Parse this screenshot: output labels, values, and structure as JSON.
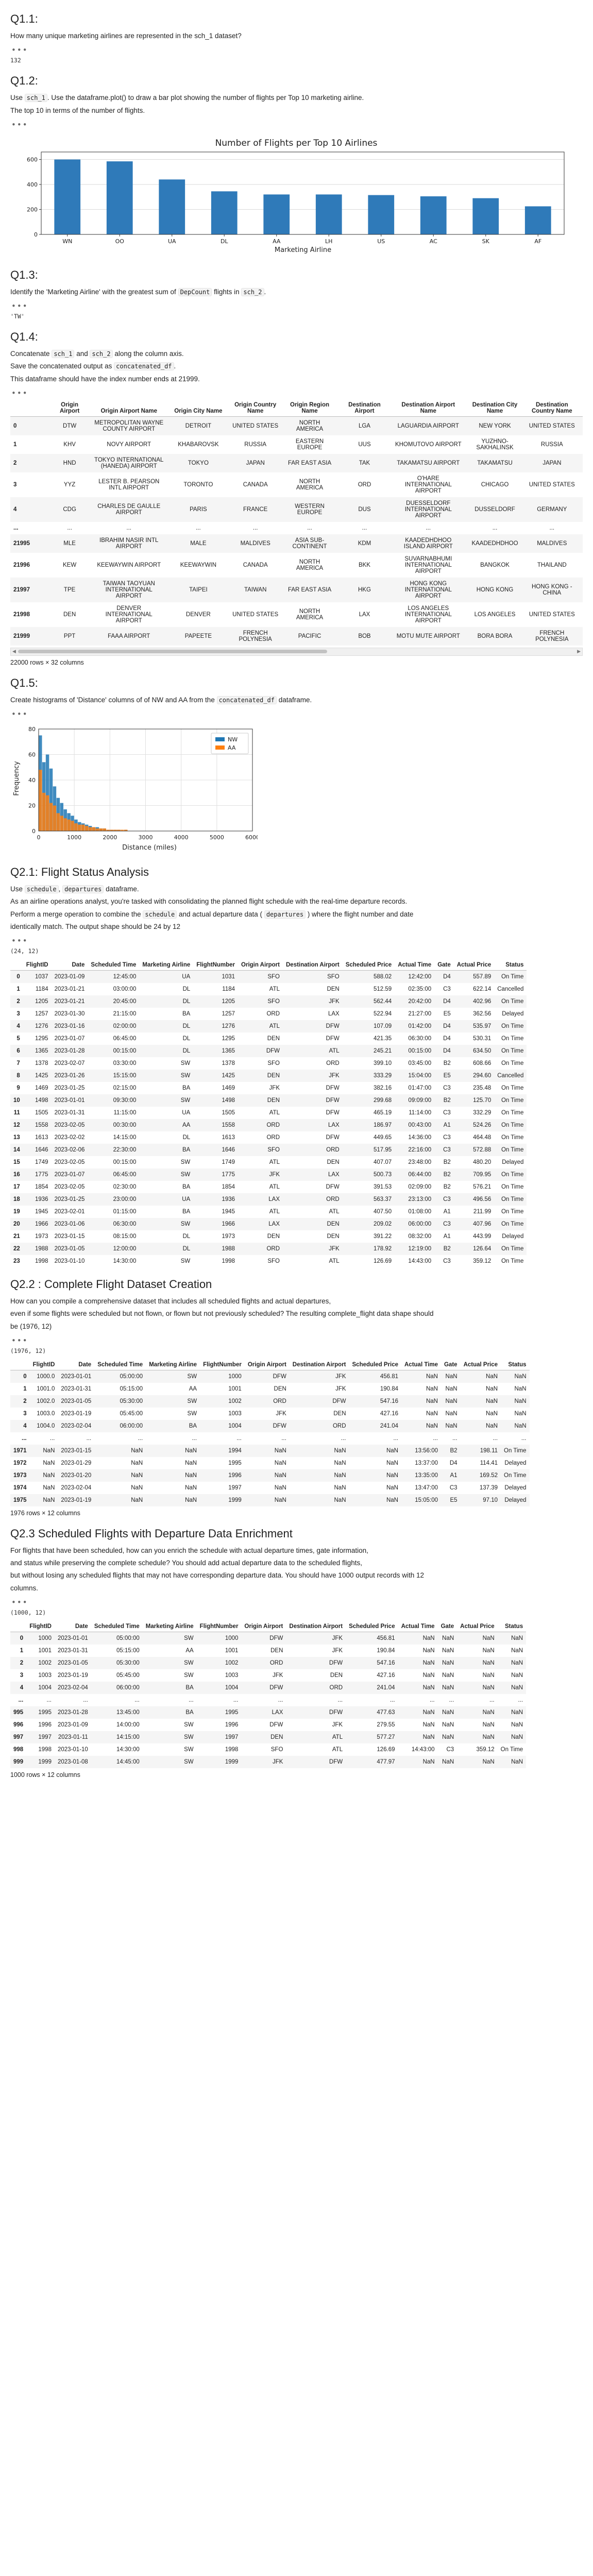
{
  "q11": {
    "title": "Q1.1:",
    "text": "How many unique marketing airlines are represented in the sch_1 dataset?",
    "output": "132"
  },
  "q12": {
    "title": "Q1.2:",
    "text1_a": "Use ",
    "text1_code": "sch_1",
    "text1_b": ". Use the dataframe.plot() to draw a bar plot showing the number of flights per Top 10 marketing airline.",
    "text2": "The top 10 in terms of the number of flights.",
    "chart_data": {
      "type": "bar",
      "title": "Number of Flights per Top 10 Airlines",
      "xlabel": "Marketing Airline",
      "ylabel": "",
      "categories": [
        "WN",
        "OO",
        "UA",
        "DL",
        "AA",
        "LH",
        "US",
        "AC",
        "SK",
        "AF"
      ],
      "values": [
        600,
        585,
        440,
        345,
        320,
        320,
        315,
        305,
        290,
        225
      ],
      "yticks": [
        0,
        200,
        400,
        600
      ],
      "ylim": [
        0,
        660
      ],
      "grid": true,
      "color": "#2f7ab9"
    }
  },
  "q13": {
    "title": "Q1.3:",
    "text_a": "Identify the 'Marketing Airline' with the greatest sum of ",
    "text_code1": "DepCount",
    "text_b": " flights in ",
    "text_code2": "sch_2",
    "text_c": ".",
    "output": "'TW'"
  },
  "q14": {
    "title": "Q1.4:",
    "line1_a": "Concatenate ",
    "line1_code1": "sch_1",
    "line1_b": " and ",
    "line1_code2": "sch_2",
    "line1_c": " along the column axis.",
    "line2_a": "Save the concatenated output as ",
    "line2_code": "concatenated_df",
    "line2_b": ".",
    "line3": "This dataframe should have the index number ends at 21999.",
    "columns": [
      "",
      "Origin Airport",
      "Origin Airport Name",
      "Origin City Name",
      "Origin Country Name",
      "Origin Region Name",
      "Destination Airport",
      "Destination Airport Name",
      "Destination City Name",
      "Destination Country Name",
      "De"
    ],
    "rows": [
      [
        "0",
        "DTW",
        "METROPOLITAN WAYNE COUNTY AIRPORT",
        "DETROIT",
        "UNITED STATES",
        "NORTH AMERICA",
        "LGA",
        "LAGUARDIA AIRPORT",
        "NEW YORK",
        "UNITED STATES",
        ""
      ],
      [
        "1",
        "KHV",
        "NOVY AIRPORT",
        "KHABAROVSK",
        "RUSSIA",
        "EASTERN EUROPE",
        "UUS",
        "KHOMUTOVO AIRPORT",
        "YUZHNO-SAKHALINSK",
        "RUSSIA",
        ""
      ],
      [
        "2",
        "HND",
        "TOKYO INTERNATIONAL (HANEDA) AIRPORT",
        "TOKYO",
        "JAPAN",
        "FAR EAST ASIA",
        "TAK",
        "TAKAMATSU AIRPORT",
        "TAKAMATSU",
        "JAPAN",
        ""
      ],
      [
        "3",
        "YYZ",
        "LESTER B. PEARSON INTL AIRPORT",
        "TORONTO",
        "CANADA",
        "NORTH AMERICA",
        "ORD",
        "O'HARE INTERNATIONAL AIRPORT",
        "CHICAGO",
        "UNITED STATES",
        ""
      ],
      [
        "4",
        "CDG",
        "CHARLES DE GAULLE AIRPORT",
        "PARIS",
        "FRANCE",
        "WESTERN EUROPE",
        "DUS",
        "DUESSELDORF INTERNATIONAL AIRPORT",
        "DUSSELDORF",
        "GERMANY",
        ""
      ],
      [
        "...",
        "...",
        "...",
        "...",
        "...",
        "...",
        "...",
        "...",
        "...",
        "...",
        "..."
      ],
      [
        "21995",
        "MLE",
        "IBRAHIM NASIR INTL AIRPORT",
        "MALE",
        "MALDIVES",
        "ASIA SUB-CONTINENT",
        "KDM",
        "KAADEDHDHOO ISLAND AIRPORT",
        "KAADEDHDHOO",
        "MALDIVES",
        "C"
      ],
      [
        "21996",
        "KEW",
        "KEEWAYWIN AIRPORT",
        "KEEWAYWIN",
        "CANADA",
        "NORTH AMERICA",
        "BKK",
        "SUVARNABHUMI INTERNATIONAL AIRPORT",
        "BANGKOK",
        "THAILAND",
        "SC"
      ],
      [
        "21997",
        "TPE",
        "TAIWAN TAOYUAN INTERNATIONAL AIRPORT",
        "TAIPEI",
        "TAIWAN",
        "FAR EAST ASIA",
        "HKG",
        "HONG KONG INTERNATIONAL AIRPORT",
        "HONG KONG",
        "HONG KONG - CHINA",
        ""
      ],
      [
        "21998",
        "DEN",
        "DENVER INTERNATIONAL AIRPORT",
        "DENVER",
        "UNITED STATES",
        "NORTH AMERICA",
        "LAX",
        "LOS ANGELES INTERNATIONAL AIRPORT",
        "LOS ANGELES",
        "UNITED STATES",
        ""
      ],
      [
        "21999",
        "PPT",
        "FAAA AIRPORT",
        "PAPEETE",
        "FRENCH POLYNESIA",
        "PACIFIC",
        "BOB",
        "MOTU MUTE AIRPORT",
        "BORA BORA",
        "FRENCH POLYNESIA",
        ""
      ]
    ],
    "shape": "22000 rows × 32 columns"
  },
  "q15": {
    "title": "Q1.5:",
    "text_a": "Create histograms of 'Distance' columns of of NW and AA from the ",
    "text_code": "concatenated_df",
    "text_b": " dataframe.",
    "chart_data": {
      "type": "bar",
      "title": "",
      "xlabel": "Distance (miles)",
      "ylabel": "Frequency",
      "xlim": [
        0,
        6000
      ],
      "ylim": [
        0,
        80
      ],
      "xticks": [
        0,
        1000,
        2000,
        3000,
        4000,
        5000,
        6000
      ],
      "yticks": [
        0,
        20,
        40,
        60,
        80
      ],
      "bin_width": 100,
      "series": [
        {
          "name": "NW",
          "color": "#1f77b4",
          "values": [
            75,
            54,
            60,
            49,
            35,
            26,
            22,
            17,
            14,
            12,
            9,
            7,
            6,
            5,
            4,
            3,
            3,
            2,
            2,
            1,
            1,
            1,
            1,
            0,
            1
          ]
        },
        {
          "name": "AA",
          "color": "#ff7f0e",
          "values": [
            48,
            30,
            28,
            22,
            20,
            14,
            12,
            10,
            9,
            8,
            6,
            5,
            5,
            4,
            3,
            3,
            2,
            2,
            2,
            1,
            1,
            1,
            1,
            1,
            1
          ]
        }
      ],
      "legend": "top-right",
      "grid": true
    }
  },
  "q21": {
    "title": "Q2.1: Flight Status Analysis",
    "line1_a": "Use ",
    "line1_code": "schedule",
    "line1_b": ", ",
    "line1_code2": "departures",
    "line1_c": " dataframe.",
    "line2": "As an airline operations analyst, you're tasked with consolidating the planned flight schedule with the real-time departure records.",
    "line3_a": "Perform a merge operation to combine the ",
    "line3_code1": "schedule",
    "line3_b": " and actual departure data ( ",
    "line3_code2": "departures",
    "line3_c": " ) where the flight number and date",
    "line4": "identically match. The output shape should be 24 by 12",
    "output": "(24, 12)",
    "columns": [
      "",
      "FlightID",
      "Date",
      "Scheduled Time",
      "Marketing Airline",
      "FlightNumber",
      "Origin Airport",
      "Destination Airport",
      "Scheduled Price",
      "Actual Time",
      "Gate",
      "Actual Price",
      "Status"
    ],
    "rows": [
      [
        "0",
        "1037",
        "2023-01-09",
        "12:45:00",
        "UA",
        "1031",
        "SFO",
        "SFO",
        "588.02",
        "12:42:00",
        "D4",
        "557.89",
        "On Time"
      ],
      [
        "1",
        "1184",
        "2023-01-21",
        "03:00:00",
        "DL",
        "1184",
        "ATL",
        "DEN",
        "512.59",
        "02:35:00",
        "C3",
        "622.14",
        "Cancelled"
      ],
      [
        "2",
        "1205",
        "2023-01-21",
        "20:45:00",
        "DL",
        "1205",
        "SFO",
        "JFK",
        "562.44",
        "20:42:00",
        "D4",
        "402.96",
        "On Time"
      ],
      [
        "3",
        "1257",
        "2023-01-30",
        "21:15:00",
        "BA",
        "1257",
        "ORD",
        "LAX",
        "522.94",
        "21:27:00",
        "E5",
        "362.56",
        "Delayed"
      ],
      [
        "4",
        "1276",
        "2023-01-16",
        "02:00:00",
        "DL",
        "1276",
        "ATL",
        "DFW",
        "107.09",
        "01:42:00",
        "D4",
        "535.97",
        "On Time"
      ],
      [
        "5",
        "1295",
        "2023-01-07",
        "06:45:00",
        "DL",
        "1295",
        "DEN",
        "DFW",
        "421.35",
        "06:30:00",
        "D4",
        "530.31",
        "On Time"
      ],
      [
        "6",
        "1365",
        "2023-01-28",
        "00:15:00",
        "DL",
        "1365",
        "DFW",
        "ATL",
        "245.21",
        "00:15:00",
        "D4",
        "634.50",
        "On Time"
      ],
      [
        "7",
        "1378",
        "2023-02-07",
        "03:30:00",
        "SW",
        "1378",
        "SFO",
        "ORD",
        "399.10",
        "03:45:00",
        "B2",
        "608.66",
        "On Time"
      ],
      [
        "8",
        "1425",
        "2023-01-26",
        "15:15:00",
        "SW",
        "1425",
        "DEN",
        "JFK",
        "333.29",
        "15:04:00",
        "E5",
        "294.60",
        "Cancelled"
      ],
      [
        "9",
        "1469",
        "2023-01-25",
        "02:15:00",
        "BA",
        "1469",
        "JFK",
        "DFW",
        "382.16",
        "01:47:00",
        "C3",
        "235.48",
        "On Time"
      ],
      [
        "10",
        "1498",
        "2023-01-01",
        "09:30:00",
        "SW",
        "1498",
        "DEN",
        "DFW",
        "299.68",
        "09:09:00",
        "B2",
        "125.70",
        "On Time"
      ],
      [
        "11",
        "1505",
        "2023-01-31",
        "11:15:00",
        "UA",
        "1505",
        "ATL",
        "DFW",
        "465.19",
        "11:14:00",
        "C3",
        "332.29",
        "On Time"
      ],
      [
        "12",
        "1558",
        "2023-02-05",
        "00:30:00",
        "AA",
        "1558",
        "ORD",
        "LAX",
        "186.97",
        "00:43:00",
        "A1",
        "524.26",
        "On Time"
      ],
      [
        "13",
        "1613",
        "2023-02-02",
        "14:15:00",
        "DL",
        "1613",
        "ORD",
        "DFW",
        "449.65",
        "14:36:00",
        "C3",
        "464.48",
        "On Time"
      ],
      [
        "14",
        "1646",
        "2023-02-06",
        "22:30:00",
        "BA",
        "1646",
        "SFO",
        "ORD",
        "517.95",
        "22:16:00",
        "C3",
        "572.88",
        "On Time"
      ],
      [
        "15",
        "1749",
        "2023-02-05",
        "00:15:00",
        "SW",
        "1749",
        "ATL",
        "DEN",
        "407.07",
        "23:48:00",
        "B2",
        "480.20",
        "Delayed"
      ],
      [
        "16",
        "1775",
        "2023-01-07",
        "06:45:00",
        "SW",
        "1775",
        "JFK",
        "LAX",
        "500.73",
        "06:44:00",
        "B2",
        "709.95",
        "On Time"
      ],
      [
        "17",
        "1854",
        "2023-02-05",
        "02:30:00",
        "BA",
        "1854",
        "ATL",
        "DFW",
        "391.53",
        "02:09:00",
        "B2",
        "576.21",
        "On Time"
      ],
      [
        "18",
        "1936",
        "2023-01-25",
        "23:00:00",
        "UA",
        "1936",
        "LAX",
        "ORD",
        "563.37",
        "23:13:00",
        "C3",
        "496.56",
        "On Time"
      ],
      [
        "19",
        "1945",
        "2023-02-01",
        "01:15:00",
        "BA",
        "1945",
        "ATL",
        "ATL",
        "407.50",
        "01:08:00",
        "A1",
        "211.99",
        "On Time"
      ],
      [
        "20",
        "1966",
        "2023-01-06",
        "06:30:00",
        "SW",
        "1966",
        "LAX",
        "DEN",
        "209.02",
        "06:00:00",
        "C3",
        "407.96",
        "On Time"
      ],
      [
        "21",
        "1973",
        "2023-01-15",
        "08:15:00",
        "DL",
        "1973",
        "DEN",
        "DEN",
        "391.22",
        "08:32:00",
        "A1",
        "443.99",
        "Delayed"
      ],
      [
        "22",
        "1988",
        "2023-01-05",
        "12:00:00",
        "DL",
        "1988",
        "ORD",
        "JFK",
        "178.92",
        "12:19:00",
        "B2",
        "126.64",
        "On Time"
      ],
      [
        "23",
        "1998",
        "2023-01-10",
        "14:30:00",
        "SW",
        "1998",
        "SFO",
        "ATL",
        "126.69",
        "14:43:00",
        "C3",
        "359.12",
        "On Time"
      ]
    ]
  },
  "q22": {
    "title": "Q2.2 : Complete Flight Dataset Creation",
    "line1": "How can you compile a comprehensive dataset that includes all scheduled flights and actual departures,",
    "line2": "even if some flights were scheduled but not flown, or flown but not previously scheduled? The resulting complete_flight data shape should",
    "line3": "be (1976, 12)",
    "output": "(1976, 12)",
    "columns": [
      "",
      "FlightID",
      "Date",
      "Scheduled Time",
      "Marketing Airline",
      "FlightNumber",
      "Origin Airport",
      "Destination Airport",
      "Scheduled Price",
      "Actual Time",
      "Gate",
      "Actual Price",
      "Status"
    ],
    "rows": [
      [
        "0",
        "1000.0",
        "2023-01-01",
        "05:00:00",
        "SW",
        "1000",
        "DFW",
        "JFK",
        "456.81",
        "NaN",
        "NaN",
        "NaN",
        "NaN"
      ],
      [
        "1",
        "1001.0",
        "2023-01-31",
        "05:15:00",
        "AA",
        "1001",
        "DEN",
        "JFK",
        "190.84",
        "NaN",
        "NaN",
        "NaN",
        "NaN"
      ],
      [
        "2",
        "1002.0",
        "2023-01-05",
        "05:30:00",
        "SW",
        "1002",
        "ORD",
        "DFW",
        "547.16",
        "NaN",
        "NaN",
        "NaN",
        "NaN"
      ],
      [
        "3",
        "1003.0",
        "2023-01-19",
        "05:45:00",
        "SW",
        "1003",
        "JFK",
        "DEN",
        "427.16",
        "NaN",
        "NaN",
        "NaN",
        "NaN"
      ],
      [
        "4",
        "1004.0",
        "2023-02-04",
        "06:00:00",
        "BA",
        "1004",
        "DFW",
        "ORD",
        "241.04",
        "NaN",
        "NaN",
        "NaN",
        "NaN"
      ],
      [
        "...",
        "...",
        "...",
        "...",
        "...",
        "...",
        "...",
        "...",
        "...",
        "...",
        "...",
        "...",
        "..."
      ],
      [
        "1971",
        "NaN",
        "2023-01-15",
        "NaN",
        "NaN",
        "1994",
        "NaN",
        "NaN",
        "NaN",
        "13:56:00",
        "B2",
        "198.11",
        "On Time"
      ],
      [
        "1972",
        "NaN",
        "2023-01-29",
        "NaN",
        "NaN",
        "1995",
        "NaN",
        "NaN",
        "NaN",
        "13:37:00",
        "D4",
        "114.41",
        "Delayed"
      ],
      [
        "1973",
        "NaN",
        "2023-01-20",
        "NaN",
        "NaN",
        "1996",
        "NaN",
        "NaN",
        "NaN",
        "13:35:00",
        "A1",
        "169.52",
        "On Time"
      ],
      [
        "1974",
        "NaN",
        "2023-02-04",
        "NaN",
        "NaN",
        "1997",
        "NaN",
        "NaN",
        "NaN",
        "13:47:00",
        "C3",
        "137.39",
        "Delayed"
      ],
      [
        "1975",
        "NaN",
        "2023-01-19",
        "NaN",
        "NaN",
        "1999",
        "NaN",
        "NaN",
        "NaN",
        "15:05:00",
        "E5",
        "97.10",
        "Delayed"
      ]
    ],
    "shape": "1976 rows × 12 columns"
  },
  "q23": {
    "title": "Q2.3 Scheduled Flights with Departure Data Enrichment",
    "line1": "For flights that have been scheduled, how can you enrich the schedule with actual departure times, gate information,",
    "line2": "and status while preserving the complete schedule? You should add actual departure data to the scheduled flights,",
    "line3": "but without losing any scheduled flights that may not have corresponding departure data. You should have 1000 output records with 12",
    "line4": "columns.",
    "output": "(1000, 12)",
    "columns": [
      "",
      "FlightID",
      "Date",
      "Scheduled Time",
      "Marketing Airline",
      "FlightNumber",
      "Origin Airport",
      "Destination Airport",
      "Scheduled Price",
      "Actual Time",
      "Gate",
      "Actual Price",
      "Status"
    ],
    "rows": [
      [
        "0",
        "1000",
        "2023-01-01",
        "05:00:00",
        "SW",
        "1000",
        "DFW",
        "JFK",
        "456.81",
        "NaN",
        "NaN",
        "NaN",
        "NaN"
      ],
      [
        "1",
        "1001",
        "2023-01-31",
        "05:15:00",
        "AA",
        "1001",
        "DEN",
        "JFK",
        "190.84",
        "NaN",
        "NaN",
        "NaN",
        "NaN"
      ],
      [
        "2",
        "1002",
        "2023-01-05",
        "05:30:00",
        "SW",
        "1002",
        "ORD",
        "DFW",
        "547.16",
        "NaN",
        "NaN",
        "NaN",
        "NaN"
      ],
      [
        "3",
        "1003",
        "2023-01-19",
        "05:45:00",
        "SW",
        "1003",
        "JFK",
        "DEN",
        "427.16",
        "NaN",
        "NaN",
        "NaN",
        "NaN"
      ],
      [
        "4",
        "1004",
        "2023-02-04",
        "06:00:00",
        "BA",
        "1004",
        "DFW",
        "ORD",
        "241.04",
        "NaN",
        "NaN",
        "NaN",
        "NaN"
      ],
      [
        "...",
        "...",
        "...",
        "...",
        "...",
        "...",
        "...",
        "...",
        "...",
        "...",
        "...",
        "...",
        "..."
      ],
      [
        "995",
        "1995",
        "2023-01-28",
        "13:45:00",
        "BA",
        "1995",
        "LAX",
        "DFW",
        "477.63",
        "NaN",
        "NaN",
        "NaN",
        "NaN"
      ],
      [
        "996",
        "1996",
        "2023-01-09",
        "14:00:00",
        "SW",
        "1996",
        "DFW",
        "JFK",
        "279.55",
        "NaN",
        "NaN",
        "NaN",
        "NaN"
      ],
      [
        "997",
        "1997",
        "2023-01-11",
        "14:15:00",
        "SW",
        "1997",
        "DEN",
        "ATL",
        "577.27",
        "NaN",
        "NaN",
        "NaN",
        "NaN"
      ],
      [
        "998",
        "1998",
        "2023-01-10",
        "14:30:00",
        "SW",
        "1998",
        "SFO",
        "ATL",
        "126.69",
        "14:43:00",
        "C3",
        "359.12",
        "On Time"
      ],
      [
        "999",
        "1999",
        "2023-01-08",
        "14:45:00",
        "SW",
        "1999",
        "JFK",
        "DFW",
        "477.97",
        "NaN",
        "NaN",
        "NaN",
        "NaN"
      ]
    ],
    "shape": "1000 rows × 12 columns"
  },
  "ui": {
    "ellipsis": "•••"
  }
}
